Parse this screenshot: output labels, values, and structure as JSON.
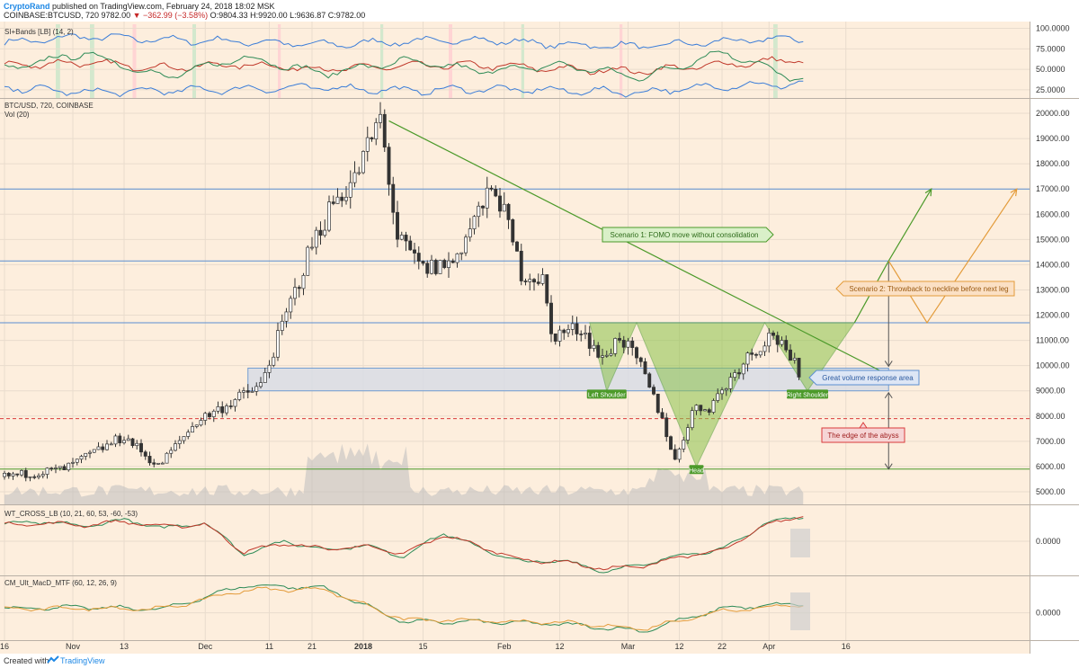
{
  "header": {
    "author": "CryptoRand",
    "published": "published on TradingView.com, February 24, 2018 18:02 MSK",
    "symbol_line_prefix": "COINBASE:BTCUSD, 720",
    "price": "9782.00",
    "change": "▼ −362.99 (−3.58%)",
    "ohlc": "O:9804.33 H:9920.00 L:9636.87 C:9782.00"
  },
  "footer": {
    "created": "Created with",
    "brand": "TradingView"
  },
  "colors": {
    "background": "#fdeedd",
    "grid": "#e9dccd",
    "up": "#ffffff",
    "down": "#333333",
    "accent_green": "#4c9a2a",
    "accent_orange": "#e39b3a",
    "zone_blue": "#5b8fd1",
    "abyss_red": "#d93b3b"
  },
  "chart_data": [
    {
      "type": "line",
      "panel": "indicator",
      "title": "SI+Bands [LB] (14, 2)",
      "y_ticks": [
        "100.0000",
        "75.0000",
        "50.0000",
        "25.0000"
      ],
      "ylim": [
        15,
        105
      ],
      "series": [
        {
          "color": "#3b7dd8",
          "x": [
            0,
            0.1,
            0.2,
            0.3,
            0.4,
            0.5,
            0.6,
            0.7,
            0.8,
            0.9,
            1
          ],
          "values": [
            82,
            90,
            86,
            84,
            80,
            84,
            86,
            80,
            78,
            84,
            88
          ]
        },
        {
          "color": "#c0392b",
          "x": [
            0,
            0.1,
            0.2,
            0.3,
            0.4,
            0.5,
            0.6,
            0.7,
            0.8,
            0.9,
            1
          ],
          "values": [
            55,
            58,
            52,
            56,
            50,
            54,
            55,
            50,
            48,
            56,
            62
          ]
        },
        {
          "color": "#2e8b57",
          "x": [
            0,
            0.1,
            0.2,
            0.3,
            0.4,
            0.5,
            0.6,
            0.7,
            0.8,
            0.9,
            1
          ],
          "values": [
            50,
            70,
            40,
            65,
            45,
            60,
            48,
            55,
            40,
            72,
            35
          ]
        },
        {
          "color": "#3b7dd8",
          "x": [
            0,
            0.1,
            0.2,
            0.3,
            0.4,
            0.5,
            0.6,
            0.7,
            0.8,
            0.9,
            1
          ],
          "values": [
            28,
            22,
            24,
            26,
            28,
            24,
            26,
            24,
            22,
            30,
            32
          ]
        }
      ]
    },
    {
      "type": "candlestick",
      "panel": "main",
      "title": "BTC/USD, 720, COINBASE",
      "subtitle": "Vol (20)",
      "y_ticks": [
        "20000.00",
        "19000.00",
        "18000.00",
        "17000.00",
        "16000.00",
        "15000.00",
        "14000.00",
        "13000.00",
        "12000.00",
        "11000.00",
        "10000.00",
        "9000.00",
        "8000.00",
        "7000.00",
        "6000.00",
        "5000.00"
      ],
      "ylim": [
        4500,
        20500
      ],
      "price_path": [
        {
          "d": 0,
          "p": 5600
        },
        {
          "d": 14,
          "p": 5900
        },
        {
          "d": 28,
          "p": 7200
        },
        {
          "d": 36,
          "p": 6000
        },
        {
          "d": 45,
          "p": 7800
        },
        {
          "d": 60,
          "p": 9200
        },
        {
          "d": 72,
          "p": 14800
        },
        {
          "d": 77,
          "p": 16500
        },
        {
          "d": 82,
          "p": 17400
        },
        {
          "d": 88,
          "p": 19800
        },
        {
          "d": 92,
          "p": 15000
        },
        {
          "d": 98,
          "p": 13800
        },
        {
          "d": 105,
          "p": 14100
        },
        {
          "d": 110,
          "p": 15800
        },
        {
          "d": 115,
          "p": 17100
        },
        {
          "d": 121,
          "p": 13700
        },
        {
          "d": 126,
          "p": 13400
        },
        {
          "d": 128,
          "p": 11200
        },
        {
          "d": 135,
          "p": 11500
        },
        {
          "d": 140,
          "p": 10200
        },
        {
          "d": 144,
          "p": 11200
        },
        {
          "d": 149,
          "p": 9900
        },
        {
          "d": 154,
          "p": 7900
        },
        {
          "d": 157,
          "p": 6200
        },
        {
          "d": 161,
          "p": 8200
        },
        {
          "d": 165,
          "p": 8400
        },
        {
          "d": 168,
          "p": 9000
        },
        {
          "d": 173,
          "p": 10200
        },
        {
          "d": 180,
          "p": 11300
        },
        {
          "d": 183,
          "p": 10400
        },
        {
          "d": 186,
          "p": 9800
        }
      ],
      "levels": [
        17000,
        14150,
        11700,
        5900
      ],
      "abyss_level": 7900,
      "zone": {
        "low": 9000,
        "high": 9900
      },
      "neckline": 11700,
      "pattern_points": {
        "start": {
          "d": 137,
          "p": 11700
        },
        "left_shoulder": {
          "d": 141,
          "p": 9000
        },
        "mid_left": {
          "d": 148,
          "p": 11700
        },
        "head": {
          "d": 162,
          "p": 6000
        },
        "mid_right": {
          "d": 178,
          "p": 11700
        },
        "right_shoulder": {
          "d": 188,
          "p": 9000
        },
        "end": {
          "d": 199,
          "p": 11700
        }
      },
      "trendline": [
        {
          "d": 90,
          "p": 19700
        },
        {
          "d": 205,
          "p": 9800
        }
      ],
      "projection_arrow": {
        "d": 207,
        "from": 5900,
        "mid": 9900,
        "top": 14150
      },
      "scenario1": [
        {
          "d": 199,
          "p": 11700
        },
        {
          "d": 207,
          "p": 14150
        },
        {
          "d": 217,
          "p": 17000
        }
      ],
      "scenario2": [
        {
          "d": 207,
          "p": 14150
        },
        {
          "d": 216,
          "p": 11700
        },
        {
          "d": 237,
          "p": 17000
        }
      ],
      "labels": {
        "left_shoulder": "Left Shoulder",
        "head": "Head",
        "right_shoulder": "Right Shoulder",
        "scenario1": "Scenario 1: FOMO move without consolidation",
        "scenario2": "Scenario 2: Throwback to neckline before next leg",
        "zone": "Great volume response area",
        "abyss": "The edge of the abyss"
      }
    },
    {
      "type": "line",
      "panel": "oscillator",
      "title": "WT_CROSS_LB (10, 21, 60, 53, -60, -53)",
      "y_ticks": [
        "0.0000"
      ],
      "ylim": [
        -80,
        80
      ],
      "series": [
        {
          "color": "#2e8b57",
          "x": [
            0,
            0.05,
            0.1,
            0.15,
            0.2,
            0.25,
            0.3,
            0.35,
            0.4,
            0.45,
            0.5,
            0.55,
            0.6,
            0.65,
            0.7,
            0.75,
            0.8,
            0.85,
            0.9,
            0.95,
            1
          ],
          "values": [
            40,
            45,
            35,
            50,
            30,
            45,
            -30,
            0,
            -20,
            -10,
            -35,
            20,
            -20,
            -50,
            -45,
            -70,
            -55,
            -30,
            -20,
            40,
            60
          ]
        },
        {
          "color": "#c0392b",
          "x": [
            0,
            0.05,
            0.1,
            0.15,
            0.2,
            0.25,
            0.3,
            0.35,
            0.4,
            0.45,
            0.5,
            0.55,
            0.6,
            0.65,
            0.7,
            0.75,
            0.8,
            0.85,
            0.9,
            0.95,
            1
          ],
          "values": [
            38,
            42,
            38,
            46,
            34,
            40,
            -25,
            -5,
            -18,
            -12,
            -30,
            15,
            -15,
            -45,
            -48,
            -65,
            -58,
            -35,
            -22,
            35,
            62
          ]
        }
      ]
    },
    {
      "type": "line",
      "panel": "macd",
      "title": "CM_Ult_MacD_MTF (60, 12, 26, 9)",
      "y_ticks": [
        "0.0000"
      ],
      "ylim": [
        -60,
        80
      ],
      "series": [
        {
          "color": "#2e8b57",
          "x": [
            0,
            0.1,
            0.2,
            0.3,
            0.4,
            0.5,
            0.6,
            0.7,
            0.8,
            0.9,
            1
          ],
          "values": [
            10,
            12,
            8,
            60,
            55,
            -20,
            -20,
            -25,
            -40,
            10,
            20
          ]
        },
        {
          "color": "#e39b3a",
          "x": [
            0,
            0.1,
            0.2,
            0.3,
            0.4,
            0.5,
            0.6,
            0.7,
            0.8,
            0.9,
            1
          ],
          "values": [
            8,
            10,
            9,
            50,
            52,
            -15,
            -18,
            -22,
            -35,
            5,
            18
          ]
        }
      ]
    }
  ],
  "x_axis": {
    "labels": [
      "16",
      "Nov",
      "13",
      "Dec",
      "11",
      "21",
      "2018",
      "15",
      "Feb",
      "12",
      "Mar",
      "12",
      "22",
      "Apr",
      "16"
    ],
    "positions": [
      0,
      16,
      28,
      47,
      62,
      72,
      84,
      98,
      117,
      130,
      146,
      158,
      168,
      179,
      197
    ]
  }
}
